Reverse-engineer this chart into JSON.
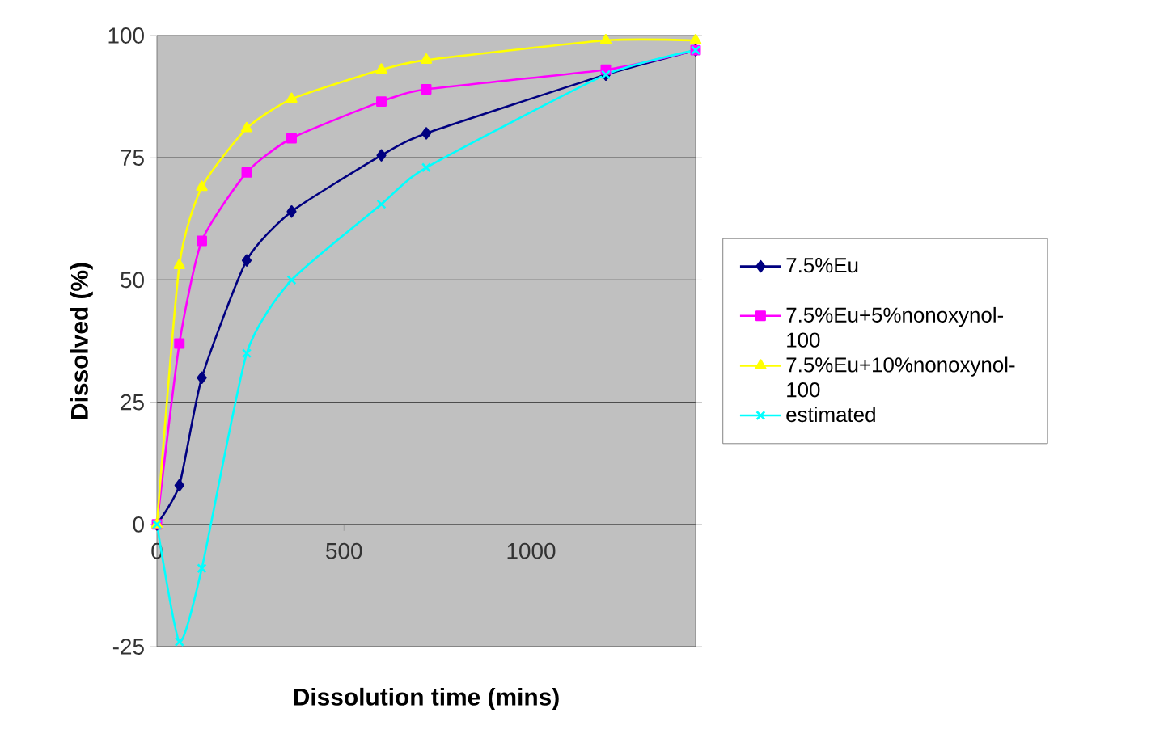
{
  "chart_data": {
    "type": "line",
    "xlabel": "Dissolution time (mins)",
    "ylabel": "Dissolved (%)",
    "x": [
      0,
      60,
      120,
      240,
      360,
      600,
      720,
      1200,
      1440
    ],
    "series": [
      {
        "name": "7.5%Eu",
        "color": "#000080",
        "marker": "diamond",
        "values": [
          0,
          8,
          30,
          54,
          64,
          75.5,
          80,
          92,
          97
        ]
      },
      {
        "name": "7.5%Eu+5%nonoxynol-100",
        "color": "#ff00ff",
        "marker": "square",
        "values": [
          0,
          37,
          58,
          72,
          79,
          86.5,
          89,
          93,
          97
        ]
      },
      {
        "name": "7.5%Eu+10%nonoxynol-100",
        "color": "#ffff00",
        "marker": "triangle",
        "values": [
          0,
          53,
          69,
          81,
          87,
          93,
          95,
          99,
          99
        ]
      },
      {
        "name": "estimated",
        "color": "#00ffff",
        "marker": "cross",
        "values": [
          0,
          -24,
          -9,
          35,
          50,
          65.5,
          73,
          92,
          97
        ]
      }
    ],
    "xlim": [
      0,
      1440
    ],
    "ylim": [
      -25,
      100
    ],
    "xticks": [
      0,
      500,
      1000
    ],
    "yticks": [
      -25,
      0,
      25,
      50,
      75,
      100
    ],
    "grid": "y",
    "legend": "right"
  }
}
